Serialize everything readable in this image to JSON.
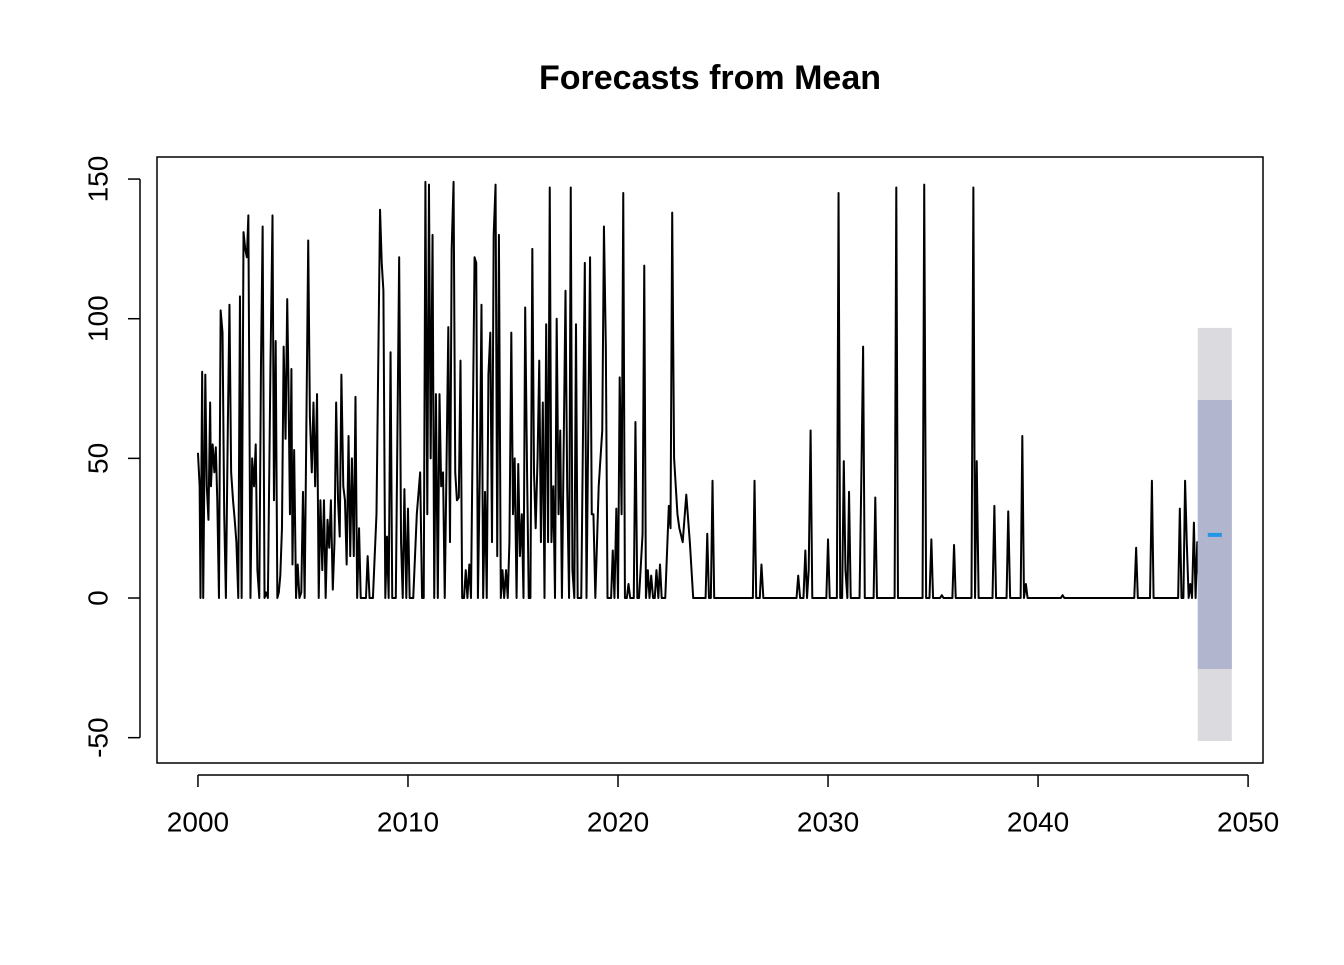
{
  "chart_data": {
    "type": "line",
    "title": "Forecasts from Mean",
    "xlim": [
      1998.05,
      2050.71
    ],
    "ylim": [
      -59.07,
      157.9
    ],
    "xticks": [
      2000,
      2010,
      2020,
      2030,
      2040,
      2050
    ],
    "yticks": [
      -50,
      0,
      50,
      100,
      150
    ],
    "x": [
      2000.0,
      2000.08,
      2000.12,
      2000.2,
      2000.25,
      2000.35,
      2000.42,
      2000.5,
      2000.58,
      2000.62,
      2000.7,
      2000.78,
      2000.85,
      2000.92,
      2001.0,
      2001.08,
      2001.17,
      2001.25,
      2001.33,
      2001.42,
      2001.5,
      2001.58,
      2001.67,
      2001.75,
      2001.83,
      2001.92,
      2002.0,
      2002.08,
      2002.17,
      2002.25,
      2002.33,
      2002.4,
      2002.5,
      2002.58,
      2002.67,
      2002.75,
      2002.83,
      2002.92,
      2003.0,
      2003.08,
      2003.17,
      2003.25,
      2003.33,
      2003.45,
      2003.55,
      2003.62,
      2003.7,
      2003.78,
      2003.85,
      2003.92,
      2004.0,
      2004.08,
      2004.17,
      2004.25,
      2004.3,
      2004.38,
      2004.45,
      2004.5,
      2004.58,
      2004.67,
      2004.75,
      2004.83,
      2004.92,
      2005.0,
      2005.08,
      2005.25,
      2005.33,
      2005.42,
      2005.5,
      2005.58,
      2005.67,
      2005.75,
      2005.83,
      2005.92,
      2006.0,
      2006.08,
      2006.17,
      2006.25,
      2006.33,
      2006.42,
      2006.5,
      2006.58,
      2006.67,
      2006.75,
      2006.83,
      2006.92,
      2007.0,
      2007.08,
      2007.17,
      2007.25,
      2007.33,
      2007.42,
      2007.5,
      2007.58,
      2007.67,
      2007.75,
      2008.0,
      2008.08,
      2008.17,
      2008.33,
      2008.5,
      2008.67,
      2008.75,
      2008.83,
      2008.92,
      2009.0,
      2009.08,
      2009.17,
      2009.25,
      2009.42,
      2009.58,
      2009.67,
      2009.75,
      2009.83,
      2009.92,
      2010.0,
      2010.08,
      2010.25,
      2010.42,
      2010.58,
      2010.67,
      2010.75,
      2010.83,
      2010.92,
      2011.0,
      2011.08,
      2011.17,
      2011.25,
      2011.33,
      2011.42,
      2011.5,
      2011.58,
      2011.67,
      2011.75,
      2011.83,
      2011.92,
      2012.0,
      2012.08,
      2012.17,
      2012.25,
      2012.33,
      2012.42,
      2012.5,
      2012.58,
      2012.67,
      2012.75,
      2012.83,
      2012.92,
      2013.0,
      2013.17,
      2013.25,
      2013.33,
      2013.42,
      2013.5,
      2013.58,
      2013.67,
      2013.75,
      2013.83,
      2013.92,
      2014.0,
      2014.08,
      2014.17,
      2014.25,
      2014.33,
      2014.42,
      2014.5,
      2014.58,
      2014.67,
      2014.75,
      2014.83,
      2014.92,
      2015.0,
      2015.08,
      2015.17,
      2015.25,
      2015.33,
      2015.42,
      2015.5,
      2015.58,
      2015.67,
      2015.75,
      2015.83,
      2015.92,
      2016.0,
      2016.08,
      2016.17,
      2016.25,
      2016.33,
      2016.42,
      2016.5,
      2016.58,
      2016.67,
      2016.75,
      2016.83,
      2016.92,
      2017.0,
      2017.08,
      2017.17,
      2017.25,
      2017.33,
      2017.5,
      2017.58,
      2017.67,
      2017.75,
      2017.83,
      2017.92,
      2018.0,
      2018.08,
      2018.25,
      2018.42,
      2018.5,
      2018.67,
      2018.75,
      2018.83,
      2018.92,
      2019.08,
      2019.25,
      2019.33,
      2019.42,
      2019.5,
      2019.67,
      2019.75,
      2019.83,
      2019.92,
      2020.0,
      2020.08,
      2020.17,
      2020.25,
      2020.33,
      2020.42,
      2020.5,
      2020.58,
      2020.75,
      2020.83,
      2020.92,
      2021.0,
      2021.17,
      2021.25,
      2021.33,
      2021.42,
      2021.5,
      2021.58,
      2021.67,
      2021.75,
      2021.83,
      2021.92,
      2022.0,
      2022.08,
      2022.25,
      2022.42,
      2022.5,
      2022.58,
      2022.67,
      2022.75,
      2022.83,
      2022.92,
      2023.08,
      2023.25,
      2023.42,
      2023.58,
      2023.67,
      2024.17,
      2024.25,
      2024.33,
      2024.42,
      2024.5,
      2024.58,
      2026.42,
      2026.5,
      2026.58,
      2026.75,
      2026.83,
      2026.92,
      2028.5,
      2028.58,
      2028.67,
      2028.83,
      2028.92,
      2029.0,
      2029.08,
      2029.17,
      2029.25,
      2029.92,
      2030.0,
      2030.08,
      2030.42,
      2030.5,
      2030.58,
      2030.67,
      2030.75,
      2030.83,
      2030.92,
      2031.0,
      2031.08,
      2031.5,
      2031.58,
      2031.67,
      2031.75,
      2032.17,
      2032.25,
      2032.33,
      2033.17,
      2033.25,
      2033.33,
      2034.5,
      2034.58,
      2034.67,
      2034.83,
      2034.92,
      2035.0,
      2035.33,
      2035.42,
      2035.5,
      2035.92,
      2036.0,
      2036.08,
      2036.83,
      2036.92,
      2037.0,
      2037.08,
      2037.17,
      2037.83,
      2037.92,
      2038.0,
      2038.5,
      2038.58,
      2038.67,
      2039.17,
      2039.25,
      2039.33,
      2039.42,
      2039.5,
      2041.08,
      2041.17,
      2041.25,
      2044.58,
      2044.67,
      2044.75,
      2045.33,
      2045.42,
      2045.5,
      2046.67,
      2046.75,
      2046.83,
      2046.92,
      2047.0,
      2047.08,
      2047.17,
      2047.25,
      2047.33,
      2047.42,
      2047.5,
      2047.58,
      2047.67,
      2047.75,
      2047.83,
      2047.92,
      2048.0
    ],
    "series": [
      {
        "color": "#000000",
        "values": [
          52,
          40,
          0,
          81,
          0,
          80,
          40,
          28,
          70,
          40,
          55,
          45,
          54,
          35,
          0,
          103,
          95,
          30,
          0,
          60,
          105,
          45,
          35,
          28,
          20,
          0,
          108,
          0,
          131,
          125,
          122,
          137,
          0,
          50,
          40,
          55,
          10,
          0,
          83,
          133,
          0,
          2,
          0,
          82,
          137,
          35,
          92,
          0,
          2,
          8,
          25,
          90,
          57,
          107,
          82,
          30,
          82,
          12,
          53,
          0,
          12,
          0,
          2,
          38,
          0,
          128,
          65,
          45,
          70,
          40,
          73,
          0,
          35,
          10,
          35,
          0,
          28,
          18,
          35,
          3,
          20,
          70,
          35,
          22,
          80,
          40,
          35,
          12,
          58,
          15,
          50,
          15,
          72,
          0,
          25,
          0,
          0,
          15,
          0,
          0,
          30,
          139,
          120,
          110,
          0,
          22,
          0,
          88,
          0,
          0,
          122,
          20,
          0,
          39,
          0,
          32,
          0,
          0,
          30,
          45,
          0,
          0,
          149,
          30,
          148,
          50,
          130,
          0,
          73,
          0,
          73,
          40,
          45,
          0,
          45,
          97,
          20,
          125,
          149,
          45,
          35,
          36,
          85,
          0,
          0,
          10,
          0,
          12,
          0,
          122,
          120,
          0,
          45,
          105,
          0,
          38,
          0,
          80,
          95,
          20,
          130,
          148,
          15,
          130,
          0,
          10,
          0,
          10,
          0,
          20,
          95,
          30,
          50,
          0,
          48,
          15,
          30,
          0,
          104,
          45,
          0,
          0,
          125,
          45,
          25,
          50,
          85,
          20,
          70,
          0,
          98,
          20,
          147,
          20,
          40,
          0,
          100,
          30,
          60,
          0,
          110,
          40,
          0,
          147,
          10,
          0,
          98,
          0,
          0,
          120,
          0,
          122,
          30,
          30,
          0,
          40,
          60,
          133,
          90,
          0,
          0,
          17,
          0,
          32,
          0,
          79,
          30,
          145,
          0,
          0,
          5,
          0,
          0,
          63,
          0,
          0,
          23,
          119,
          0,
          10,
          0,
          8,
          0,
          0,
          10,
          0,
          12,
          0,
          0,
          33,
          25,
          138,
          50,
          40,
          30,
          25,
          20,
          37,
          20,
          0,
          0,
          0,
          23,
          0,
          0,
          42,
          0,
          0,
          42,
          0,
          0,
          12,
          0,
          0,
          8,
          0,
          0,
          17,
          0,
          10,
          60,
          0,
          0,
          21,
          0,
          0,
          145,
          0,
          0,
          49,
          10,
          0,
          38,
          0,
          0,
          40,
          90,
          0,
          0,
          36,
          0,
          0,
          147,
          0,
          0,
          148,
          0,
          0,
          21,
          0,
          0,
          1,
          0,
          0,
          19,
          0,
          0,
          147,
          0,
          49,
          0,
          0,
          33,
          0,
          0,
          31,
          0,
          0,
          58,
          0,
          5,
          0,
          0,
          1,
          0,
          0,
          18,
          0,
          0,
          42,
          0,
          0,
          32,
          0,
          0,
          42,
          20,
          0,
          5,
          0,
          27,
          0,
          20,
          2,
          10,
          0,
          10,
          0
        ]
      }
    ],
    "forecast": {
      "x": [
        2048.08,
        2048.75
      ],
      "mean": [
        22.6,
        22.6
      ],
      "mean_color": "#2297e6",
      "lo80": [
        -25.4,
        -25.4
      ],
      "hi80": [
        70.9,
        70.9
      ],
      "color80": "#b1b5ce",
      "lo95": [
        -51.2,
        -51.2
      ],
      "hi95": [
        96.7,
        96.7
      ],
      "color95": "#dbdbdf"
    }
  }
}
